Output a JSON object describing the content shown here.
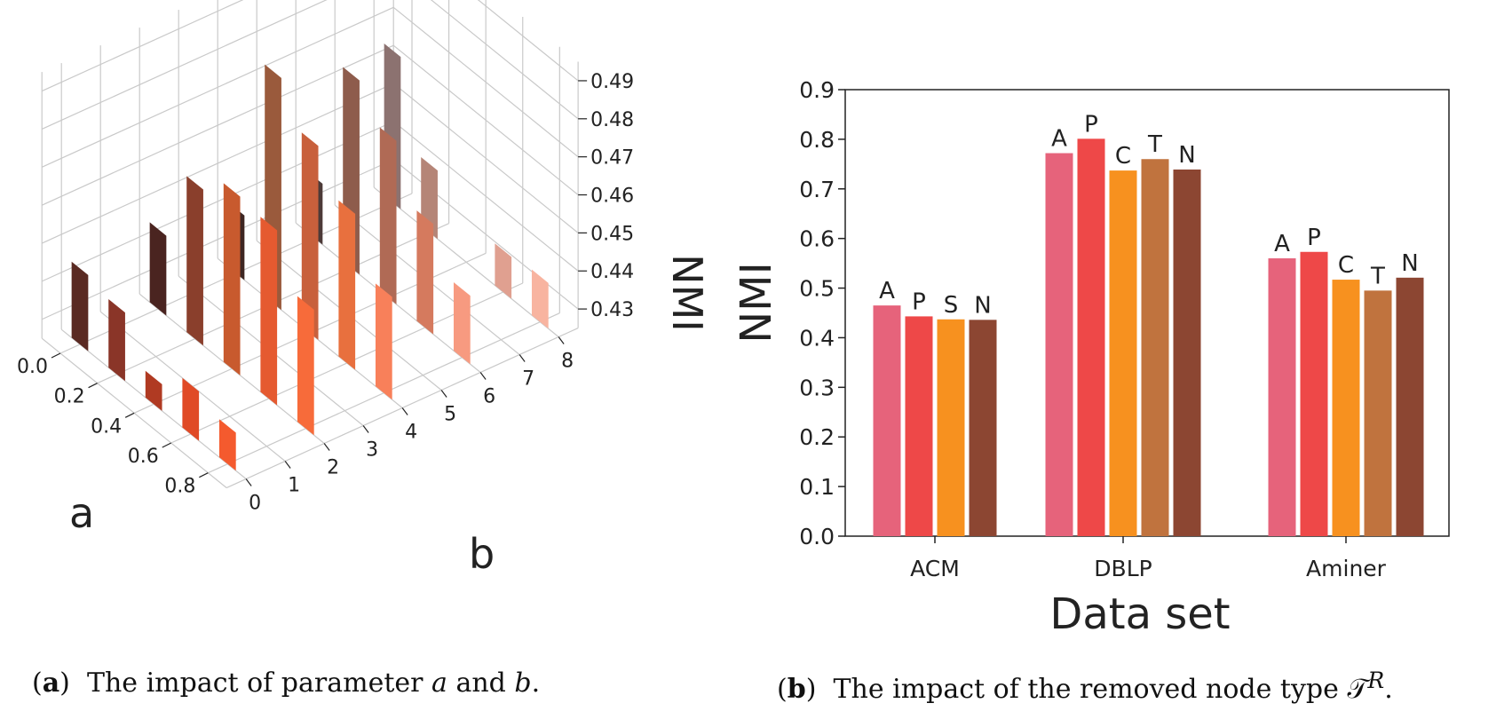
{
  "chart_data": [
    {
      "type": "bar3d",
      "panel": "a",
      "xlabel": "a",
      "ylabel": "b",
      "zlabel": "NMI",
      "a_ticks": [
        "0.0",
        "0.2",
        "0.4",
        "0.6",
        "0.8"
      ],
      "b_ticks": [
        "0",
        "1",
        "2",
        "3",
        "4",
        "5",
        "6",
        "7",
        "8"
      ],
      "z_ticks": [
        "0.43",
        "0.44",
        "0.45",
        "0.46",
        "0.47",
        "0.48",
        "0.49"
      ],
      "zlim": [
        0.425,
        0.495
      ],
      "bars": [
        {
          "a": 0.0,
          "b": 0,
          "value": 0.445,
          "color": "#5a2a22"
        },
        {
          "a": 0.2,
          "b": 0,
          "value": 0.443,
          "color": "#8a3528"
        },
        {
          "a": 0.4,
          "b": 0,
          "value": 0.432,
          "color": "#b03a22"
        },
        {
          "a": 0.6,
          "b": 0,
          "value": 0.438,
          "color": "#e04a26"
        },
        {
          "a": 0.8,
          "b": 0,
          "value": 0.435,
          "color": "#f45a2e"
        },
        {
          "a": 0.0,
          "b": 2,
          "value": 0.446,
          "color": "#4a2420"
        },
        {
          "a": 0.2,
          "b": 2,
          "value": 0.466,
          "color": "#8a3f2c"
        },
        {
          "a": 0.4,
          "b": 2,
          "value": 0.472,
          "color": "#c85a2e"
        },
        {
          "a": 0.6,
          "b": 2,
          "value": 0.471,
          "color": "#e55a30"
        },
        {
          "a": 0.8,
          "b": 2,
          "value": 0.458,
          "color": "#f76b3a"
        },
        {
          "a": 0.0,
          "b": 4,
          "value": 0.442,
          "color": "#3e2622"
        },
        {
          "a": 0.2,
          "b": 4,
          "value": 0.486,
          "color": "#9a5a3c"
        },
        {
          "a": 0.4,
          "b": 4,
          "value": 0.476,
          "color": "#c8603c"
        },
        {
          "a": 0.6,
          "b": 4,
          "value": 0.466,
          "color": "#e8703e"
        },
        {
          "a": 0.8,
          "b": 4,
          "value": 0.452,
          "color": "#f8805a"
        },
        {
          "a": 0.0,
          "b": 6,
          "value": 0.441,
          "color": "#4c3a38"
        },
        {
          "a": 0.2,
          "b": 6,
          "value": 0.476,
          "color": "#8e5c4c"
        },
        {
          "a": 0.4,
          "b": 6,
          "value": 0.468,
          "color": "#b06a55"
        },
        {
          "a": 0.6,
          "b": 6,
          "value": 0.454,
          "color": "#d57a5e"
        },
        {
          "a": 0.8,
          "b": 6,
          "value": 0.443,
          "color": "#f79a80"
        },
        {
          "a": 0.0,
          "b": 8,
          "value": 0.465,
          "color": "#8c7270"
        },
        {
          "a": 0.2,
          "b": 8,
          "value": 0.443,
          "color": "#b58577"
        },
        {
          "a": 0.6,
          "b": 8,
          "value": 0.436,
          "color": "#e0a090"
        },
        {
          "a": 0.8,
          "b": 8,
          "value": 0.437,
          "color": "#f8b4a0"
        }
      ]
    },
    {
      "type": "bar",
      "panel": "b",
      "xlabel": "Data set",
      "ylabel": "NMI",
      "ylim": [
        0.0,
        0.9
      ],
      "y_ticks": [
        "0.0",
        "0.1",
        "0.2",
        "0.3",
        "0.4",
        "0.5",
        "0.6",
        "0.7",
        "0.8",
        "0.9"
      ],
      "categories": [
        "ACM",
        "DBLP",
        "Aminer"
      ],
      "groups": [
        {
          "category": "ACM",
          "bars": [
            {
              "label": "A",
              "value": 0.465,
              "color": "#e6637b"
            },
            {
              "label": "P",
              "value": 0.443,
              "color": "#ee4848"
            },
            {
              "label": "S",
              "value": 0.437,
              "color": "#f7911f"
            },
            {
              "label": "N",
              "value": 0.436,
              "color": "#8c4632"
            }
          ]
        },
        {
          "category": "DBLP",
          "bars": [
            {
              "label": "A",
              "value": 0.772,
              "color": "#e6637b"
            },
            {
              "label": "P",
              "value": 0.801,
              "color": "#ee4848"
            },
            {
              "label": "C",
              "value": 0.737,
              "color": "#f7911f"
            },
            {
              "label": "T",
              "value": 0.76,
              "color": "#c0733e"
            },
            {
              "label": "N",
              "value": 0.739,
              "color": "#8c4632"
            }
          ]
        },
        {
          "category": "Aminer",
          "bars": [
            {
              "label": "A",
              "value": 0.56,
              "color": "#e6637b"
            },
            {
              "label": "P",
              "value": 0.573,
              "color": "#ee4848"
            },
            {
              "label": "C",
              "value": 0.517,
              "color": "#f7911f"
            },
            {
              "label": "T",
              "value": 0.495,
              "color": "#c0733e"
            },
            {
              "label": "N",
              "value": 0.521,
              "color": "#8c4632"
            }
          ]
        }
      ]
    }
  ],
  "captions": {
    "a_tag": "a",
    "a_text": "The impact of parameter",
    "a_var1": "a",
    "a_and": "and",
    "a_var2": "b",
    "b_tag": "b",
    "b_text": "The impact of the removed node type",
    "b_symbol": "𝒯",
    "b_sup": "R"
  }
}
